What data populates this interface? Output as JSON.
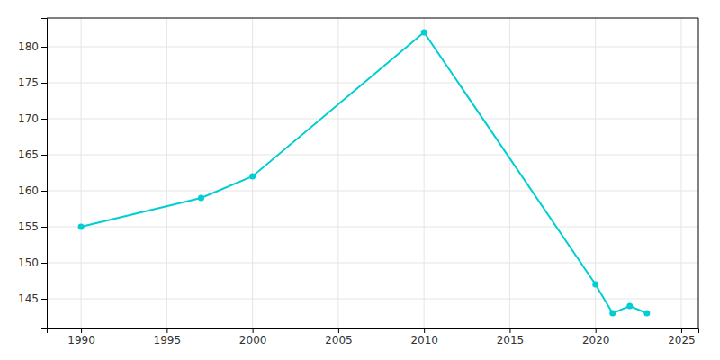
{
  "chart_data": {
    "type": "line",
    "x": [
      1990,
      1997,
      2000,
      2010,
      2020,
      2021,
      2022,
      2023
    ],
    "values": [
      155,
      159,
      162,
      182,
      147,
      143,
      144,
      143
    ],
    "color": "#00CED1",
    "marker": "circle",
    "xlim": [
      1988,
      2026
    ],
    "ylim": [
      141,
      184
    ],
    "xticks": [
      1990,
      1995,
      2000,
      2005,
      2010,
      2015,
      2020,
      2025
    ],
    "yticks": [
      145,
      150,
      155,
      160,
      165,
      170,
      175,
      180
    ],
    "grid": true
  }
}
